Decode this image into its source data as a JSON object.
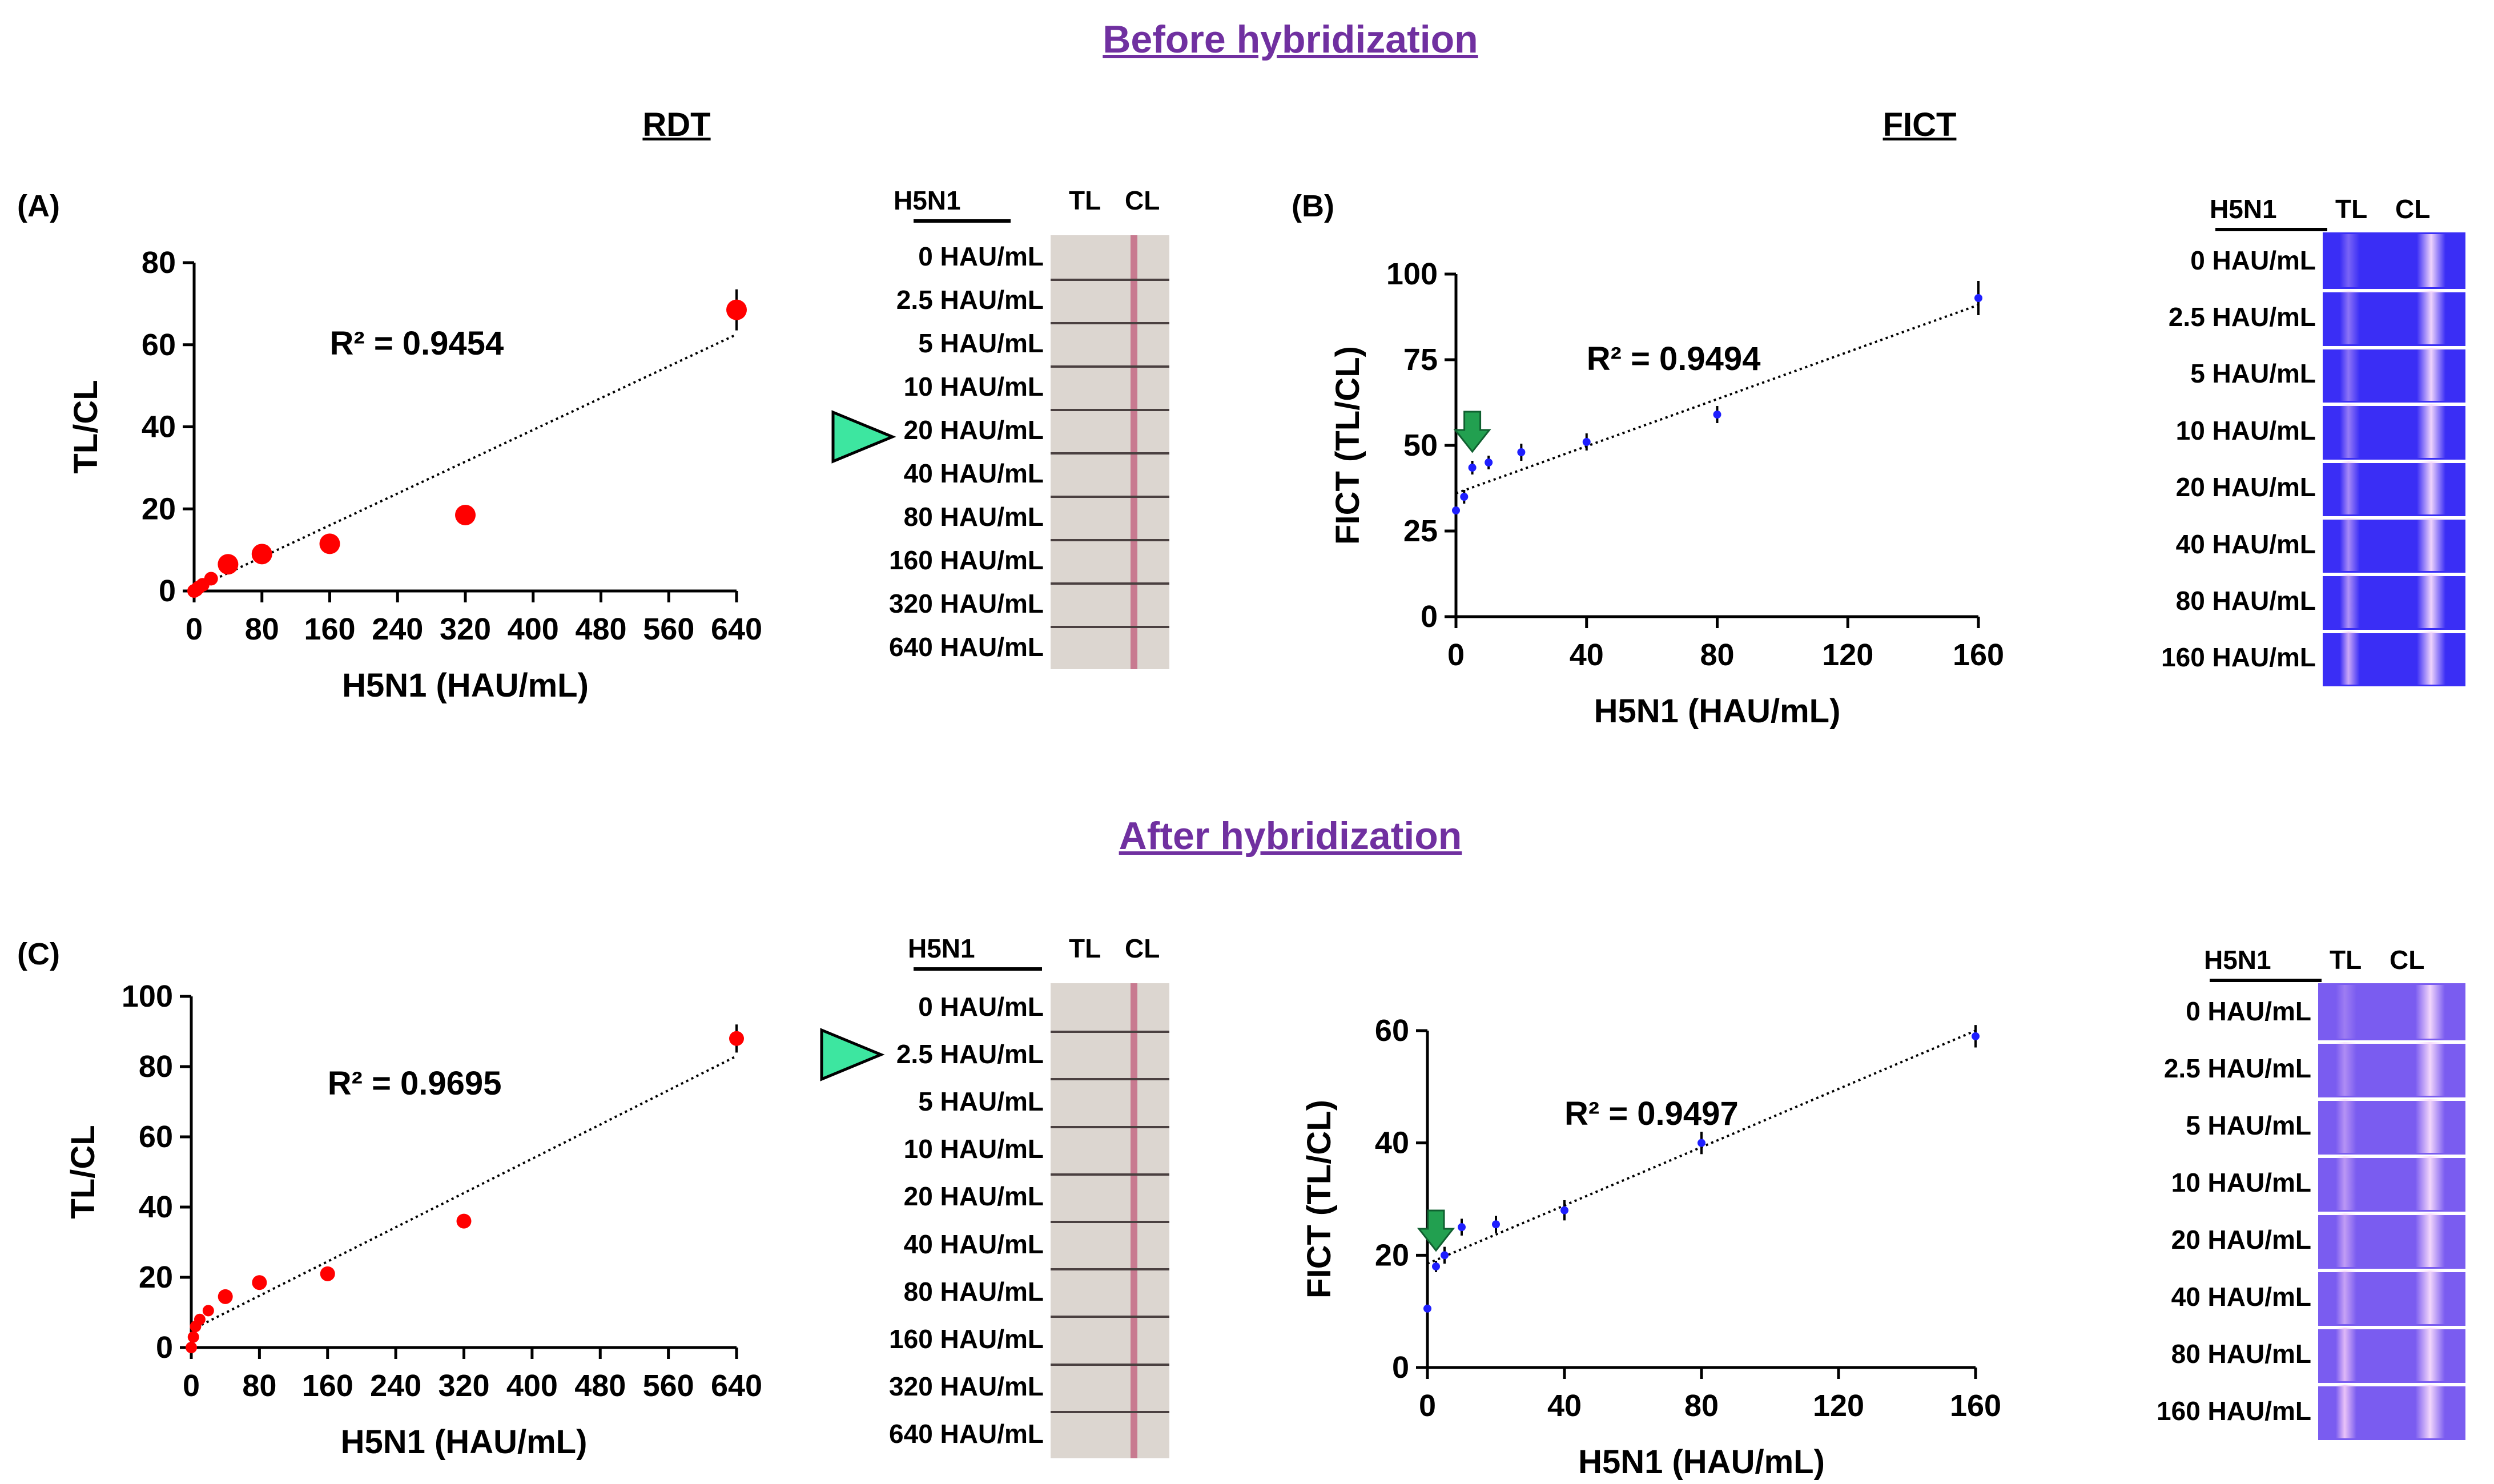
{
  "titles": {
    "before": "Before hybridization",
    "after": "After hybridization",
    "rdt": "RDT",
    "fict": "FICT"
  },
  "panels": {
    "A": "(A)",
    "B": "(B)",
    "C": "(C)"
  },
  "strip_header": {
    "h5n1": "H5N1",
    "tl": "TL",
    "cl": "CL"
  },
  "rdt_concentrations": [
    "0 HAU/mL",
    "2.5 HAU/mL",
    "5 HAU/mL",
    "10 HAU/mL",
    "20 HAU/mL",
    "40 HAU/mL",
    "80 HAU/mL",
    "160 HAU/mL",
    "320 HAU/mL",
    "640 HAU/mL"
  ],
  "fict_concentrations": [
    "0 HAU/mL",
    "2.5 HAU/mL",
    "5 HAU/mL",
    "10 HAU/mL",
    "20 HAU/mL",
    "40 HAU/mL",
    "80 HAU/mL",
    "160 HAU/mL"
  ],
  "colors": {
    "title": "#7030a0",
    "rdt_point": "#ff0000",
    "fict_point": "#1f1fff",
    "arrow": "#22a050",
    "triangle": "#3de6a0",
    "rdt_strip_bg": "#dcd6d0",
    "rdt_band": "#c87a90",
    "fict_before_bg": "#3a2ef5",
    "fict_after_bg": "#7a5cf0",
    "fict_band": "#f0c8f8"
  },
  "chart_data": [
    {
      "id": "A",
      "type": "scatter",
      "title": "",
      "xlabel": "H5N1 (HAU/mL)",
      "ylabel": "TL/CL",
      "xlim": [
        0,
        640
      ],
      "ylim": [
        0,
        80
      ],
      "xticks": [
        0,
        80,
        160,
        240,
        320,
        400,
        480,
        560,
        640
      ],
      "yticks": [
        0,
        20,
        40,
        60,
        80
      ],
      "r2": "R² = 0.9454",
      "x": [
        0,
        2.5,
        5,
        10,
        20,
        40,
        80,
        160,
        320,
        640
      ],
      "y": [
        0,
        0.3,
        0.8,
        1.5,
        3,
        6.5,
        9,
        11.5,
        18.5,
        68.5
      ],
      "err": [
        0,
        0,
        0,
        0,
        0,
        0,
        0,
        0,
        0,
        5
      ],
      "trend": [
        [
          0,
          0.5
        ],
        [
          640,
          62.5
        ]
      ]
    },
    {
      "id": "B",
      "type": "scatter",
      "title": "",
      "xlabel": "H5N1 (HAU/mL)",
      "ylabel": "FICT (TL/CL)",
      "xlim": [
        0,
        160
      ],
      "ylim": [
        0,
        100
      ],
      "xticks": [
        0,
        40,
        80,
        120,
        160
      ],
      "yticks": [
        0,
        25,
        50,
        75,
        100
      ],
      "r2": "R² = 0.9494",
      "x": [
        0,
        2.5,
        5,
        10,
        20,
        40,
        80,
        160
      ],
      "y": [
        31,
        35,
        43.5,
        45,
        48,
        51,
        59,
        93
      ],
      "err": [
        1,
        2,
        2,
        2,
        2.5,
        2.5,
        2.5,
        5
      ],
      "trend": [
        [
          0,
          36
        ],
        [
          160,
          91
        ]
      ],
      "arrow_x": 5
    },
    {
      "id": "C",
      "type": "scatter",
      "title": "",
      "xlabel": "H5N1 (HAU/mL)",
      "ylabel": "TL/CL",
      "xlim": [
        0,
        640
      ],
      "ylim": [
        0,
        100
      ],
      "xticks": [
        0,
        80,
        160,
        240,
        320,
        400,
        480,
        560,
        640
      ],
      "yticks": [
        0,
        20,
        40,
        60,
        80,
        100
      ],
      "r2": "R² = 0.9695",
      "x": [
        0,
        2.5,
        5,
        10,
        20,
        40,
        80,
        160,
        320,
        640
      ],
      "y": [
        0,
        3,
        6,
        8,
        10.5,
        14.5,
        18.5,
        21,
        36,
        88
      ],
      "err": [
        0,
        0,
        0,
        0,
        0,
        0,
        0,
        0,
        0,
        4
      ],
      "trend": [
        [
          0,
          5
        ],
        [
          640,
          83
        ]
      ]
    },
    {
      "id": "D",
      "type": "scatter",
      "title": "",
      "xlabel": "H5N1 (HAU/mL)",
      "ylabel": "FICT (TL/CL)",
      "xlim": [
        0,
        160
      ],
      "ylim": [
        0,
        60
      ],
      "xticks": [
        0,
        40,
        80,
        120,
        160
      ],
      "yticks": [
        0,
        20,
        40,
        60
      ],
      "r2": "R² = 0.9497",
      "x": [
        0,
        2.5,
        5,
        10,
        20,
        40,
        80,
        160
      ],
      "y": [
        10.5,
        18,
        20,
        25,
        25.5,
        28,
        40,
        59
      ],
      "err": [
        0.5,
        1,
        1.5,
        1.5,
        1.5,
        1.8,
        2,
        2
      ],
      "trend": [
        [
          0,
          18.5
        ],
        [
          160,
          60
        ]
      ],
      "arrow_x": 2.5
    }
  ]
}
